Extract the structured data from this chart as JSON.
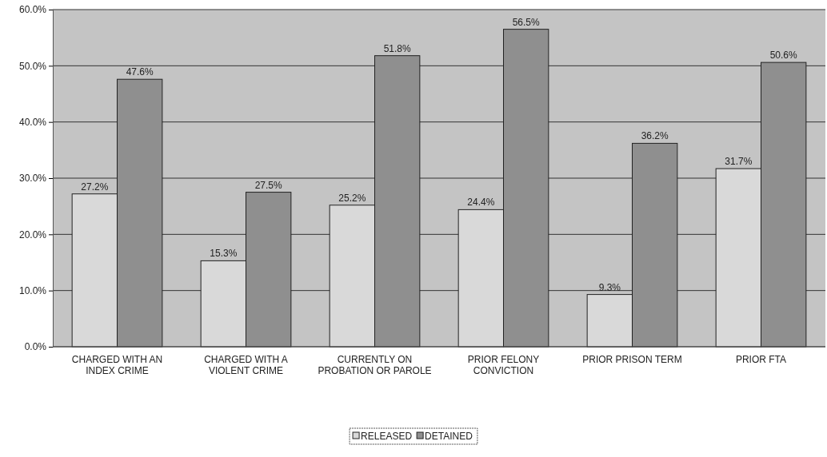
{
  "chart_data": {
    "type": "bar",
    "categories": [
      "CHARGED WITH AN INDEX CRIME",
      "CHARGED WITH A VIOLENT CRIME",
      "CURRENTLY ON PROBATION OR PAROLE",
      "PRIOR FELONY CONVICTION",
      "PRIOR PRISON TERM",
      "PRIOR FTA"
    ],
    "series": [
      {
        "name": "RELEASED",
        "color": "#d9d9d9",
        "values": [
          27.2,
          15.3,
          25.2,
          24.4,
          9.3,
          31.7
        ],
        "value_labels": [
          "27.2%",
          "15.3%",
          "25.2%",
          "24.4%",
          "9.3%",
          "31.7%"
        ]
      },
      {
        "name": "DETAINED",
        "color": "#8f8f8f",
        "values": [
          47.6,
          27.5,
          51.8,
          56.5,
          36.2,
          50.6
        ],
        "value_labels": [
          "47.6%",
          "27.5%",
          "51.8%",
          "56.5%",
          "36.2%",
          "50.6%"
        ]
      }
    ],
    "ylim": [
      0,
      60
    ],
    "yticks": [
      {
        "value": 0,
        "label": "0.0%"
      },
      {
        "value": 10,
        "label": "10.0%"
      },
      {
        "value": 20,
        "label": "20.0%"
      },
      {
        "value": 30,
        "label": "30.0%"
      },
      {
        "value": 40,
        "label": "40.0%"
      },
      {
        "value": 50,
        "label": "50.0%"
      },
      {
        "value": 60,
        "label": "60.0%"
      }
    ],
    "grid": "y",
    "legend": "bottom"
  }
}
